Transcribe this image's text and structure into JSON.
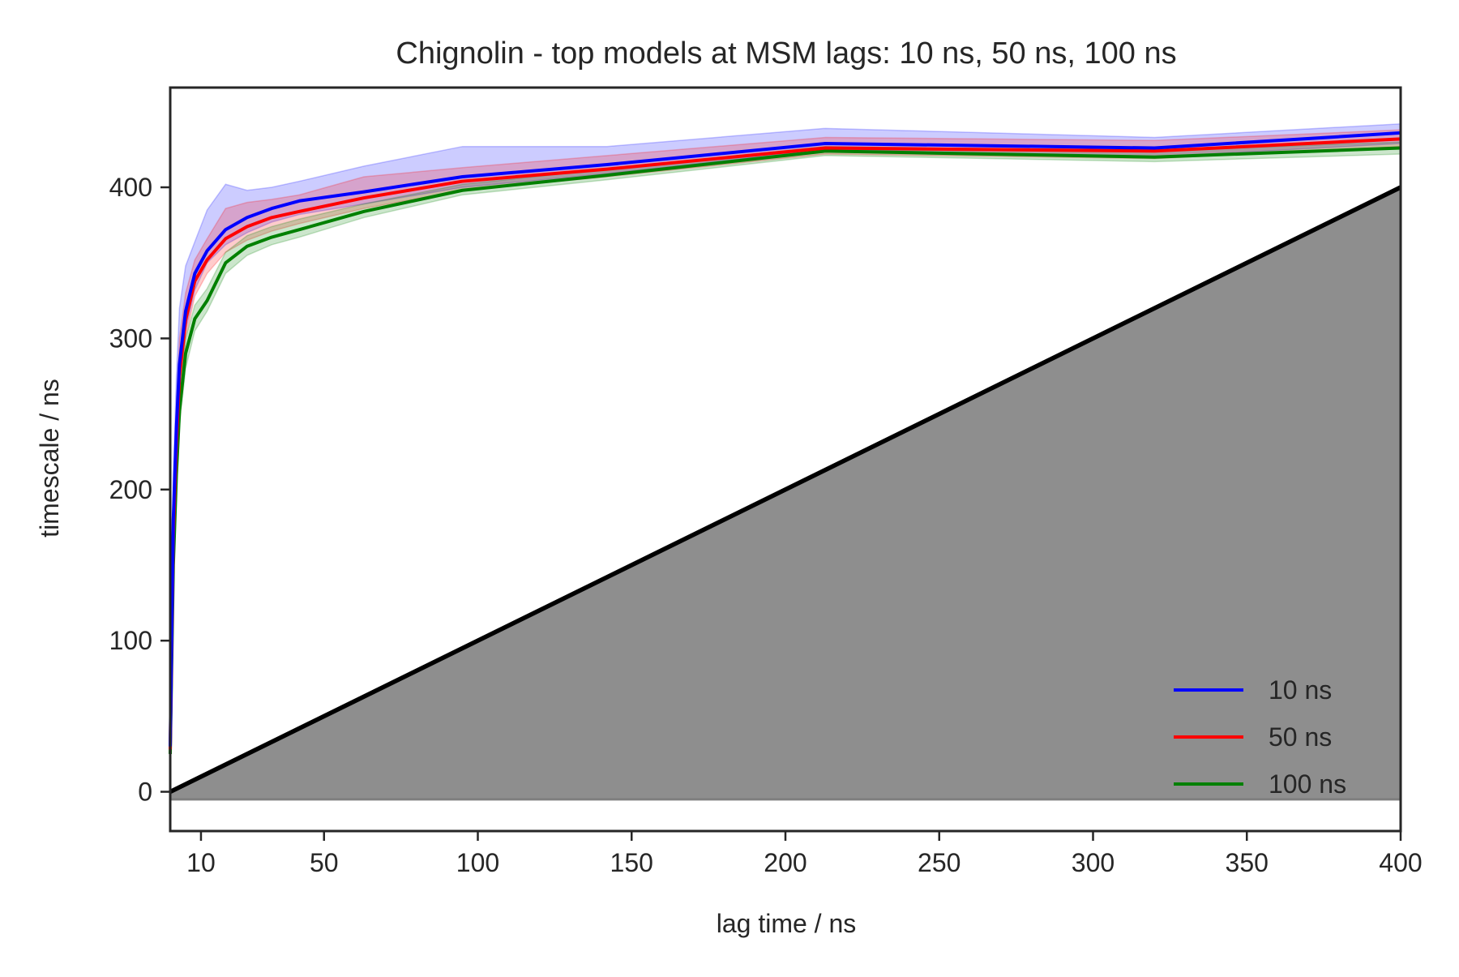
{
  "chart_data": {
    "type": "line",
    "title": "Chignolin - top models at MSM lags: 10 ns, 50 ns, 100 ns",
    "xlabel": "lag time / ns",
    "ylabel": "timescale / ns",
    "xlim": [
      0,
      400
    ],
    "ylim": [
      -26,
      466
    ],
    "xticks": [
      10,
      50,
      100,
      150,
      200,
      250,
      300,
      350,
      400
    ],
    "yticks": [
      0,
      100,
      200,
      300,
      400
    ],
    "legend": "bottom-right",
    "reference": {
      "name": "lag time (y = x)",
      "x": [
        0,
        400
      ],
      "y": [
        0,
        400
      ],
      "shade_to": -5,
      "color": "#8e8e8e"
    },
    "series": [
      {
        "name": "10 ns",
        "color": "#0000ff",
        "x": [
          0,
          1,
          2,
          3,
          5,
          8,
          12,
          18,
          25,
          33,
          42,
          63,
          95,
          142,
          213,
          320,
          400
        ],
        "y": [
          30,
          180,
          240,
          283,
          318,
          343,
          358,
          372,
          380,
          386,
          391,
          397,
          407,
          415,
          429,
          426,
          436
        ],
        "lower": [
          30,
          165,
          225,
          268,
          305,
          332,
          350,
          362,
          370,
          377,
          382,
          389,
          400,
          409,
          425,
          420,
          429
        ],
        "upper": [
          30,
          210,
          275,
          320,
          348,
          364,
          385,
          402,
          398,
          400,
          404,
          414,
          427,
          427,
          439,
          433,
          442
        ]
      },
      {
        "name": "50 ns",
        "color": "#ff0000",
        "x": [
          0,
          1,
          2,
          3,
          5,
          8,
          12,
          18,
          25,
          33,
          42,
          63,
          95,
          142,
          213,
          320,
          400
        ],
        "y": [
          28,
          170,
          230,
          275,
          312,
          338,
          352,
          366,
          374,
          380,
          384,
          393,
          404,
          412,
          426,
          424,
          432
        ],
        "lower": [
          28,
          160,
          218,
          262,
          300,
          328,
          343,
          357,
          365,
          371,
          376,
          386,
          398,
          407,
          422,
          419,
          427
        ],
        "upper": [
          28,
          190,
          255,
          300,
          330,
          352,
          366,
          386,
          390,
          392,
          395,
          407,
          413,
          421,
          433,
          431,
          438
        ]
      },
      {
        "name": "100 ns",
        "color": "#008000",
        "x": [
          0,
          1,
          2,
          3,
          5,
          8,
          12,
          18,
          25,
          33,
          42,
          63,
          95,
          142,
          213,
          320,
          400
        ],
        "y": [
          25,
          150,
          210,
          252,
          290,
          313,
          325,
          350,
          361,
          367,
          372,
          384,
          398,
          408,
          424,
          420,
          426
        ],
        "lower": [
          25,
          140,
          200,
          242,
          280,
          305,
          318,
          343,
          355,
          362,
          367,
          380,
          395,
          405,
          421,
          417,
          422
        ],
        "upper": [
          25,
          162,
          222,
          262,
          300,
          322,
          333,
          357,
          368,
          374,
          379,
          389,
          402,
          412,
          427,
          424,
          430
        ]
      }
    ]
  }
}
